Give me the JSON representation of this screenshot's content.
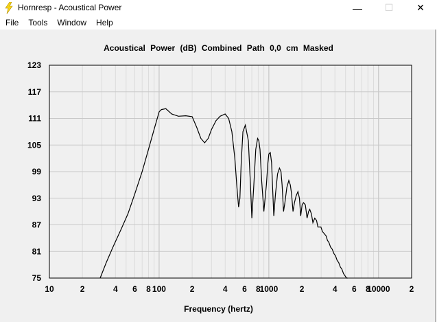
{
  "window": {
    "title": "Hornresp - Acoustical Power",
    "minimize_glyph": "—",
    "maximize_glyph": "☐",
    "close_glyph": "✕",
    "icon": "lightning-bolt-icon"
  },
  "menu": {
    "items": [
      "File",
      "Tools",
      "Window",
      "Help"
    ]
  },
  "chart_data": {
    "type": "line",
    "title": "Acoustical Power (dB)   Combined   Path 0,0 cm   Masked",
    "xlabel": "Frequency (hertz)",
    "ylabel": "",
    "x_scale": "log",
    "xlim": [
      10,
      20000
    ],
    "ylim": [
      75,
      123
    ],
    "grid": true,
    "y_ticks": [
      "123",
      "117",
      "111",
      "105",
      "99",
      "93",
      "87",
      "81",
      "75"
    ],
    "x_ticks": [
      {
        "f": 10,
        "label": "10"
      },
      {
        "f": 20,
        "label": "2"
      },
      {
        "f": 40,
        "label": "4"
      },
      {
        "f": 60,
        "label": "6"
      },
      {
        "f": 80,
        "label": "8"
      },
      {
        "f": 100,
        "label": "100"
      },
      {
        "f": 200,
        "label": "2"
      },
      {
        "f": 400,
        "label": "4"
      },
      {
        "f": 600,
        "label": "6"
      },
      {
        "f": 800,
        "label": "8"
      },
      {
        "f": 1000,
        "label": "1000"
      },
      {
        "f": 2000,
        "label": "2"
      },
      {
        "f": 4000,
        "label": "4"
      },
      {
        "f": 6000,
        "label": "6"
      },
      {
        "f": 8000,
        "label": "8"
      },
      {
        "f": 10000,
        "label": "10000"
      },
      {
        "f": 20000,
        "label": "2"
      }
    ],
    "series": [
      {
        "x": [
          29,
          33,
          38,
          45,
          52,
          60,
          70,
          80,
          90,
          100,
          105,
          115,
          130,
          150,
          175,
          200,
          220,
          240,
          260,
          280,
          300,
          330,
          360,
          400,
          430,
          460,
          490,
          510,
          530,
          545,
          560,
          580,
          610,
          650,
          680,
          700,
          730,
          760,
          790,
          810,
          830,
          860,
          900,
          950,
          980,
          1000,
          1030,
          1060,
          1080,
          1110,
          1150,
          1200,
          1250,
          1290,
          1320,
          1360,
          1400,
          1460,
          1520,
          1570,
          1610,
          1660,
          1710,
          1770,
          1840,
          1900,
          1950,
          2010,
          2070,
          2150,
          2230,
          2300,
          2360,
          2440,
          2520,
          2620,
          2720,
          2800,
          2880,
          2980,
          3080,
          3200,
          3320,
          3420,
          3530,
          3650,
          3780,
          3920,
          4050,
          4190,
          4330,
          4480,
          4630,
          4790,
          4950,
          5100,
          5230
        ],
        "y": [
          75,
          78.5,
          82,
          86,
          89.5,
          94,
          99,
          104,
          108.5,
          112.5,
          113,
          113.2,
          112,
          111.5,
          111.6,
          111.4,
          109,
          106.5,
          105.5,
          106.5,
          108.5,
          110.5,
          111.5,
          112,
          111,
          108,
          102,
          96,
          91,
          93,
          101,
          108,
          109.5,
          106,
          96,
          88.5,
          96,
          104,
          106.5,
          106,
          104,
          97,
          90,
          96,
          101,
          103,
          103.3,
          101,
          96,
          89,
          94,
          98.5,
          99.8,
          99,
          96,
          90,
          92,
          95.5,
          97,
          96,
          94,
          90,
          92,
          93.5,
          94.5,
          93,
          89,
          91.5,
          92,
          91.5,
          88.5,
          90,
          90.5,
          89.5,
          87.5,
          88.5,
          88,
          86.5,
          86.5,
          86.5,
          85.5,
          85,
          84.5,
          83.5,
          83,
          82,
          81.5,
          80.5,
          80,
          79,
          78.5,
          77.5,
          77,
          76,
          75.5,
          75,
          75
        ]
      }
    ]
  }
}
